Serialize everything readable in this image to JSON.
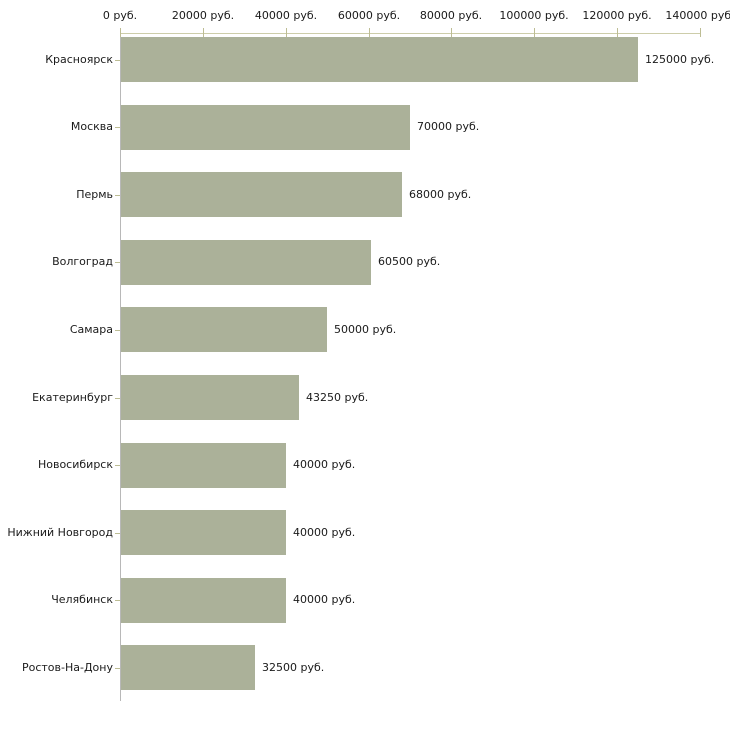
{
  "chart_data": {
    "type": "bar",
    "orientation": "horizontal",
    "title": "",
    "grid": false,
    "legend": null,
    "categories": [
      "Красноярск",
      "Москва",
      "Пермь",
      "Волгоград",
      "Самара",
      "Екатеринбург",
      "Новосибирск",
      "Нижний Новгород",
      "Челябинск",
      "Ростов-На-Дону"
    ],
    "values": [
      125000,
      70000,
      68000,
      60500,
      50000,
      43250,
      40000,
      40000,
      40000,
      32500
    ],
    "value_labels": [
      "125000 руб.",
      "70000 руб.",
      "68000 руб.",
      "60500 руб.",
      "50000 руб.",
      "43250 руб.",
      "40000 руб.",
      "40000 руб.",
      "40000 руб.",
      "32500 руб."
    ],
    "x_axis": {
      "position": "top",
      "min": 0,
      "max": 140000,
      "tick_step": 20000,
      "tick_values": [
        0,
        20000,
        40000,
        60000,
        80000,
        100000,
        120000,
        140000
      ],
      "tick_labels": [
        "0 руб.",
        "20000 руб.",
        "40000 руб.",
        "60000 руб.",
        "80000 руб.",
        "100000 руб.",
        "120000 руб.",
        "140000 руб."
      ]
    },
    "colors": {
      "bar_fill": "#abb199",
      "x_axis_line": "#cdcdaa",
      "x_axis_tick": "#bdbd94",
      "y_axis_line": "#b8b8b8",
      "category_tick": "#bdbd94",
      "label_text": "#1a1a1a"
    }
  }
}
